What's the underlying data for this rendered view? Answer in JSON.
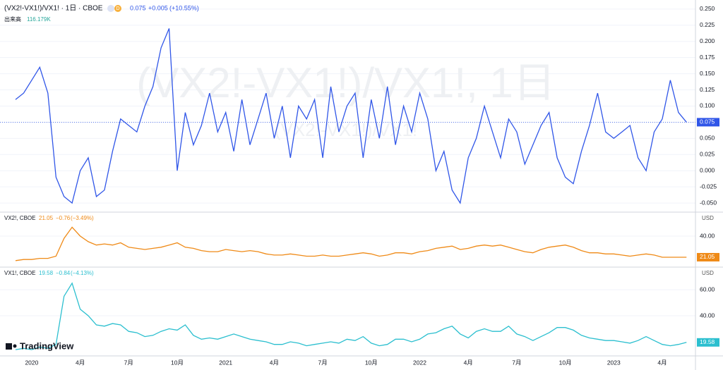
{
  "chart_data": [
    {
      "type": "line",
      "title": "(VX2!-VX1!)/VX1! · 1日 · CBOE",
      "interval_badge": "D",
      "change": "+0.005",
      "change_pct": "(+10.55%)",
      "volume_label": "出来高",
      "volume": "116.179K",
      "watermark": "(VX2!-VX1!)/VX1!, 1日",
      "watermark_subtitle": "(VX2!-VX1!)/VX1!",
      "ylim": [
        -0.063,
        0.264
      ],
      "yticks": [
        {
          "value": 0.25,
          "label": "0.250"
        },
        0.225,
        {
          "value": 0.2,
          "label": "0.200"
        },
        0.175,
        {
          "value": 0.15,
          "label": "0.150"
        },
        0.125,
        {
          "value": 0.1,
          "label": "0.100"
        },
        0.075,
        {
          "value": 0.05,
          "label": "0.050"
        },
        0.025,
        {
          "value": 0,
          "label": "0.000"
        },
        -0.025,
        {
          "value": -0.05,
          "label": "-0.050"
        }
      ],
      "series": [
        {
          "name": "(VX2!-VX1!)/VX1!",
          "color": "#3056e8",
          "values": [
            0.11,
            0.12,
            0.14,
            0.16,
            0.12,
            -0.01,
            -0.04,
            -0.05,
            0.0,
            0.02,
            -0.04,
            -0.03,
            0.03,
            0.08,
            0.07,
            0.06,
            0.1,
            0.13,
            0.19,
            0.22,
            0.0,
            0.09,
            0.04,
            0.07,
            0.12,
            0.06,
            0.09,
            0.03,
            0.11,
            0.04,
            0.08,
            0.12,
            0.05,
            0.1,
            0.02,
            0.1,
            0.08,
            0.11,
            0.02,
            0.13,
            0.06,
            0.1,
            0.12,
            0.02,
            0.11,
            0.05,
            0.13,
            0.04,
            0.1,
            0.06,
            0.12,
            0.08,
            0.0,
            0.03,
            -0.03,
            -0.05,
            0.02,
            0.05,
            0.1,
            0.06,
            0.02,
            0.08,
            0.06,
            0.01,
            0.04,
            0.07,
            0.09,
            0.02,
            -0.01,
            -0.02,
            0.03,
            0.07,
            0.12,
            0.06,
            0.05,
            0.06,
            0.07,
            0.02,
            0.0,
            0.06,
            0.08,
            0.14,
            0.09,
            0.075
          ]
        }
      ]
    },
    {
      "type": "line",
      "title": "VX2!, CBOE",
      "change": "−0.76",
      "change_pct": "(−3.49%)",
      "unit": "USD",
      "ylim": [
        12.8,
        60.9
      ],
      "yticks": [
        {
          "value": 40,
          "label": "40.00"
        }
      ],
      "series": [
        {
          "name": "VX2!",
          "color": "#ef8a17",
          "values": [
            18,
            19,
            19,
            20,
            20,
            22,
            38,
            48,
            40,
            35,
            32,
            33,
            32,
            34,
            30,
            29,
            28,
            29,
            30,
            32,
            34,
            30,
            29,
            27,
            26,
            26,
            28,
            27,
            26,
            27,
            26,
            24,
            23,
            23,
            24,
            23,
            22,
            22,
            23,
            22,
            22,
            23,
            24,
            25,
            24,
            22,
            23,
            25,
            25,
            24,
            26,
            27,
            29,
            30,
            31,
            28,
            29,
            31,
            32,
            31,
            32,
            30,
            28,
            26,
            25,
            28,
            30,
            31,
            32,
            30,
            27,
            25,
            25,
            24,
            24,
            23,
            22,
            23,
            24,
            23,
            21,
            21,
            21,
            21.05
          ]
        }
      ]
    },
    {
      "type": "line",
      "title": "VX1!, CBOE",
      "change": "−0.84",
      "change_pct": "(−4.13%)",
      "unit": "USD",
      "ylim": [
        9.2,
        76.8
      ],
      "yticks": [
        {
          "value": 40,
          "label": "40.00"
        },
        {
          "value": 60,
          "label": "60.00"
        }
      ],
      "categories": [
        null,
        null,
        "2020",
        null,
        null,
        null,
        null,
        null,
        "4月",
        null,
        null,
        null,
        null,
        null,
        "7月",
        null,
        null,
        null,
        null,
        null,
        "10月",
        null,
        null,
        null,
        null,
        null,
        "2021",
        null,
        null,
        null,
        null,
        null,
        "4月",
        null,
        null,
        null,
        null,
        null,
        "7月",
        null,
        null,
        null,
        null,
        null,
        "10月",
        null,
        null,
        null,
        null,
        null,
        "2022",
        null,
        null,
        null,
        null,
        null,
        "4月",
        null,
        null,
        null,
        null,
        null,
        "7月",
        null,
        null,
        null,
        null,
        null,
        "10月",
        null,
        null,
        null,
        null,
        null,
        "2023",
        null,
        null,
        null,
        null,
        null,
        "4月",
        null,
        null,
        null
      ],
      "series": [
        {
          "name": "VX1!",
          "color": "#2bbfcf",
          "values": [
            14,
            15,
            14,
            16,
            15,
            18,
            55,
            65,
            45,
            40,
            33,
            32,
            34,
            33,
            28,
            27,
            24,
            25,
            28,
            30,
            29,
            33,
            25,
            22,
            23,
            22,
            24,
            26,
            24,
            22,
            21,
            20,
            18,
            18,
            20,
            19,
            17,
            18,
            19,
            20,
            19,
            22,
            21,
            24,
            19,
            17,
            18,
            22,
            22,
            20,
            22,
            26,
            27,
            30,
            32,
            26,
            23,
            28,
            30,
            28,
            28,
            32,
            26,
            24,
            21,
            24,
            27,
            31,
            31,
            29,
            25,
            23,
            22,
            21,
            21,
            20,
            19,
            21,
            24,
            21,
            18,
            17,
            18,
            19.58
          ]
        }
      ]
    }
  ],
  "brand": "TradingView"
}
